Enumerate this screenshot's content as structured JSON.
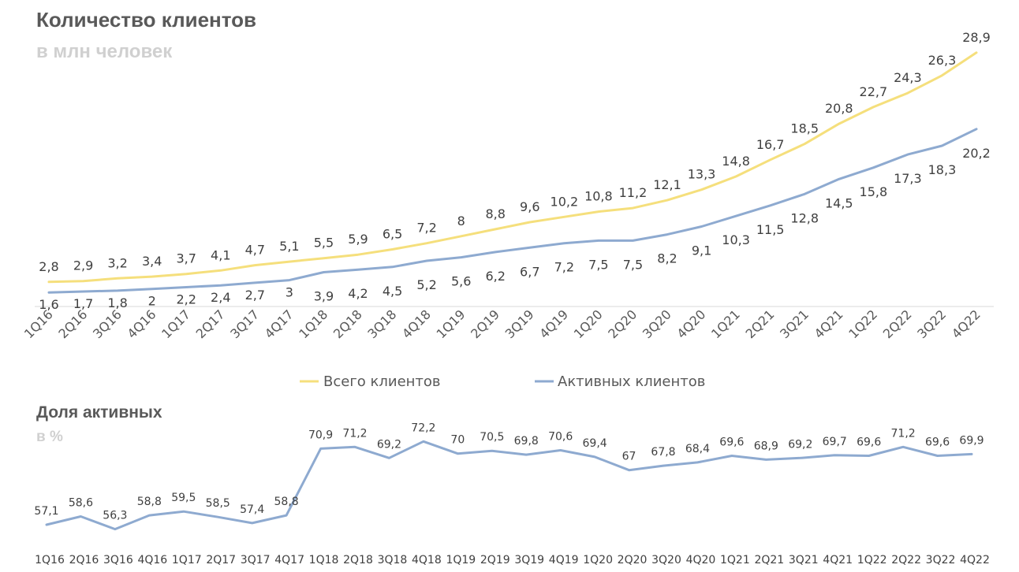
{
  "colors": {
    "total": "#f5df7c",
    "active": "#8eaad0",
    "axis": "#d9d9d9",
    "text": "#404040"
  },
  "chart_data": [
    {
      "type": "line",
      "title": "Количество клиентов",
      "subtitle": "в млн человек",
      "categories": [
        "1Q16",
        "2Q16",
        "3Q16",
        "4Q16",
        "1Q17",
        "2Q17",
        "3Q17",
        "4Q17",
        "1Q18",
        "2Q18",
        "3Q18",
        "4Q18",
        "1Q19",
        "2Q19",
        "3Q19",
        "4Q19",
        "1Q20",
        "2Q20",
        "3Q20",
        "4Q20",
        "1Q21",
        "2Q21",
        "3Q21",
        "4Q21",
        "1Q22",
        "2Q22",
        "3Q22",
        "4Q22"
      ],
      "series": [
        {
          "name": "Всего клиентов",
          "labels": [
            "2,8",
            "2,9",
            "3,2",
            "3,4",
            "3,7",
            "4,1",
            "4,7",
            "5,1",
            "5,5",
            "5,9",
            "6,5",
            "7,2",
            "8",
            "8,8",
            "9,6",
            "10,2",
            "10,8",
            "11,2",
            "12,1",
            "13,3",
            "14,8",
            "16,7",
            "18,5",
            "20,8",
            "22,7",
            "24,3",
            "26,3",
            "28,9"
          ],
          "values": [
            2.8,
            2.9,
            3.2,
            3.4,
            3.7,
            4.1,
            4.7,
            5.1,
            5.5,
            5.9,
            6.5,
            7.2,
            8,
            8.8,
            9.6,
            10.2,
            10.8,
            11.2,
            12.1,
            13.3,
            14.8,
            16.7,
            18.5,
            20.8,
            22.7,
            24.3,
            26.3,
            28.9
          ]
        },
        {
          "name": "Активных клиентов",
          "labels": [
            "1,6",
            "1,7",
            "1,8",
            "2",
            "2,2",
            "2,4",
            "2,7",
            "3",
            "3,9",
            "4,2",
            "4,5",
            "5,2",
            "5,6",
            "6,2",
            "6,7",
            "7,2",
            "7,5",
            "7,5",
            "8,2",
            "9,1",
            "10,3",
            "11,5",
            "12,8",
            "14,5",
            "15,8",
            "17,3",
            "18,3",
            "20,2"
          ],
          "values": [
            1.6,
            1.7,
            1.8,
            2,
            2.2,
            2.4,
            2.7,
            3,
            3.9,
            4.2,
            4.5,
            5.2,
            5.6,
            6.2,
            6.7,
            7.2,
            7.5,
            7.5,
            8.2,
            9.1,
            10.3,
            11.5,
            12.8,
            14.5,
            15.8,
            17.3,
            18.3,
            20.2
          ]
        }
      ],
      "ylim": [
        0,
        30
      ],
      "legend": "bottom"
    },
    {
      "type": "line",
      "title": "Доля активных",
      "subtitle": "в %",
      "categories": [
        "1Q16",
        "2Q16",
        "3Q16",
        "4Q16",
        "1Q17",
        "2Q17",
        "3Q17",
        "4Q17",
        "1Q18",
        "2Q18",
        "3Q18",
        "4Q18",
        "1Q19",
        "2Q19",
        "3Q19",
        "4Q19",
        "1Q20",
        "2Q20",
        "3Q20",
        "4Q20",
        "1Q21",
        "2Q21",
        "3Q21",
        "4Q21",
        "1Q22",
        "2Q22",
        "3Q22",
        "4Q22"
      ],
      "series": [
        {
          "name": "Доля активных",
          "labels": [
            "57,1",
            "58,6",
            "56,3",
            "58,8",
            "59,5",
            "58,5",
            "57,4",
            "58,8",
            "70,9",
            "71,2",
            "69,2",
            "72,2",
            "70",
            "70,5",
            "69,8",
            "70,6",
            "69,4",
            "67",
            "67,8",
            "68,4",
            "69,6",
            "68,9",
            "69,2",
            "69,7",
            "69,6",
            "71,2",
            "69,6",
            "69,9"
          ],
          "values": [
            57.1,
            58.6,
            56.3,
            58.8,
            59.5,
            58.5,
            57.4,
            58.8,
            70.9,
            71.2,
            69.2,
            72.2,
            70,
            70.5,
            69.8,
            70.6,
            69.4,
            67,
            67.8,
            68.4,
            69.6,
            68.9,
            69.2,
            69.7,
            69.6,
            71.2,
            69.6,
            69.9
          ]
        }
      ],
      "ylim": [
        50,
        75
      ]
    }
  ]
}
